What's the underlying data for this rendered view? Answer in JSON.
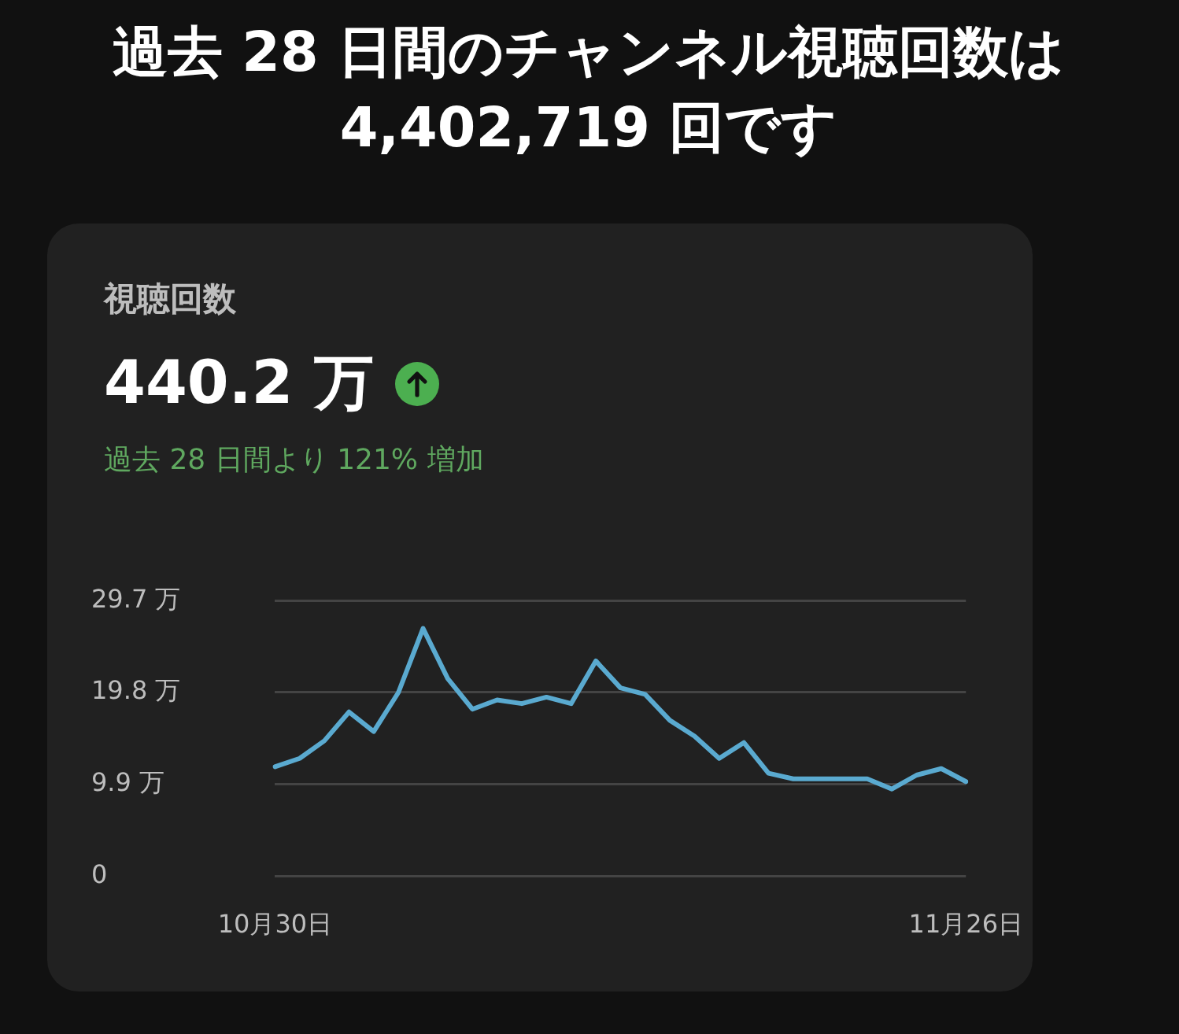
{
  "chart_data": {
    "type": "line",
    "title": "過去 28 日間のチャンネル視聴回数は 4,402,719 回です",
    "subtitle": "視聴回数",
    "annotations": [
      "440.2 万",
      "過去 28 日間より 121% 増加"
    ],
    "categories": [
      "10月30日",
      null,
      null,
      null,
      null,
      null,
      null,
      null,
      null,
      null,
      null,
      null,
      null,
      null,
      null,
      null,
      null,
      null,
      null,
      null,
      null,
      null,
      null,
      null,
      null,
      null,
      null,
      null,
      "11月26日"
    ],
    "series": [
      {
        "color": "#5aaad0",
        "values": [
          11.8,
          12.7,
          14.6,
          17.7,
          15.6,
          19.8,
          26.7,
          21.3,
          18.0,
          19.0,
          18.6,
          19.3,
          18.6,
          23.2,
          20.3,
          19.6,
          16.8,
          15.1,
          12.7,
          14.4,
          11.1,
          10.5,
          10.5,
          10.5,
          10.5,
          9.4,
          10.9,
          11.6,
          10.2
        ]
      }
    ],
    "ylim": [
      0,
      29.7
    ],
    "yticks": [
      0,
      {
        "value": 9.9,
        "label": "9.9 万"
      },
      {
        "value": 19.8,
        "label": "19.8 万"
      },
      {
        "value": 29.7,
        "label": "29.7 万"
      }
    ],
    "grid": "y",
    "legend": false,
    "marker": "none",
    "line_style": "solid"
  }
}
